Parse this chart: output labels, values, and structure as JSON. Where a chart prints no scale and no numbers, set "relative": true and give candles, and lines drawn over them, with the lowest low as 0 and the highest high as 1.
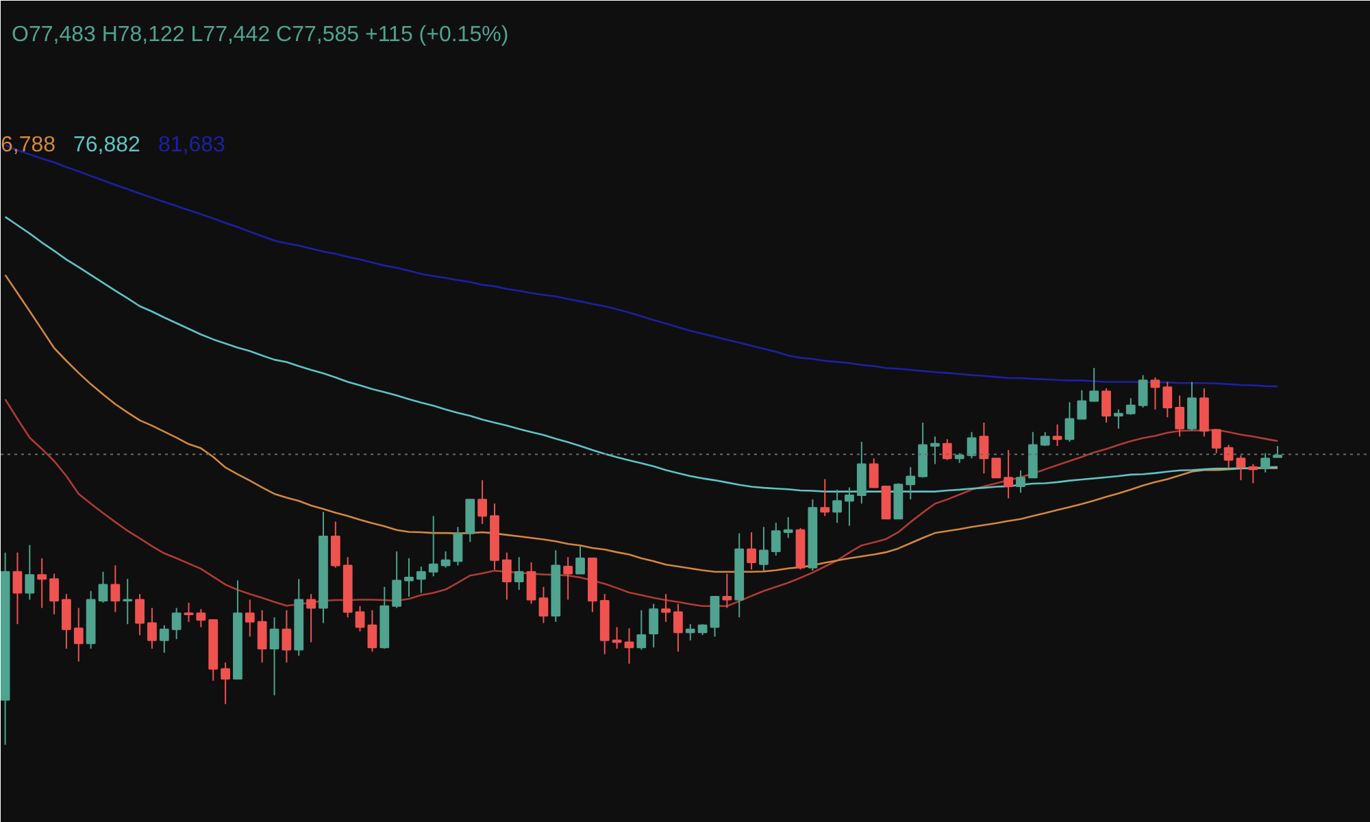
{
  "chart_data": {
    "type": "candlestick",
    "relative": true,
    "categories": [
      null,
      null,
      null,
      null,
      null,
      null,
      null,
      null,
      null,
      null,
      null,
      null,
      null,
      null,
      null,
      null,
      null,
      null,
      null,
      null,
      null,
      null,
      null,
      null,
      null,
      null,
      null,
      null,
      null,
      null,
      null,
      null,
      null,
      null,
      null,
      null,
      null,
      null,
      null,
      null,
      null,
      null,
      null,
      null,
      null,
      null,
      null,
      null,
      null,
      null,
      null,
      null,
      null,
      null,
      null,
      null,
      null,
      null,
      null,
      null,
      null,
      null,
      null,
      null,
      null,
      null,
      null,
      null,
      null,
      null,
      null,
      null,
      null,
      null,
      null,
      null,
      null,
      null,
      null,
      null,
      null,
      null,
      null,
      null,
      null,
      null,
      null,
      null,
      null,
      null,
      null,
      null,
      null,
      null,
      null,
      null,
      null,
      null,
      null,
      null,
      null,
      null,
      null,
      null,
      null
    ],
    "ohlc": [
      [
        0.119,
        0.51,
        0,
        0.459
      ],
      [
        0.459,
        0.51,
        0.32,
        0.403
      ],
      [
        0.403,
        0.53,
        0.385,
        0.451
      ],
      [
        0.451,
        0.495,
        0.363,
        0.44
      ],
      [
        0.44,
        0.454,
        0.346,
        0.382
      ],
      [
        0.385,
        0.4,
        0.255,
        0.306
      ],
      [
        0.309,
        0.363,
        0.221,
        0.269
      ],
      [
        0.269,
        0.408,
        0.255,
        0.385
      ],
      [
        0.382,
        0.459,
        0.377,
        0.425
      ],
      [
        0.425,
        0.476,
        0.352,
        0.382
      ],
      [
        0.382,
        0.44,
        0.32,
        0.385
      ],
      [
        0.385,
        0.4,
        0.291,
        0.323
      ],
      [
        0.323,
        0.363,
        0.255,
        0.277
      ],
      [
        0.277,
        0.317,
        0.244,
        0.306
      ],
      [
        0.306,
        0.363,
        0.28,
        0.349
      ],
      [
        0.349,
        0.377,
        0.326,
        0.346
      ],
      [
        0.349,
        0.36,
        0.312,
        0.331
      ],
      [
        0.331,
        0.331,
        0.17,
        0.201
      ],
      [
        0.201,
        0.218,
        0.108,
        0.175
      ],
      [
        0.175,
        0.436,
        0.175,
        0.349
      ],
      [
        0.349,
        0.385,
        0.287,
        0.326
      ],
      [
        0.326,
        0.357,
        0.218,
        0.255
      ],
      [
        0.255,
        0.338,
        0.131,
        0.306
      ],
      [
        0.306,
        0.357,
        0.218,
        0.252
      ],
      [
        0.252,
        0.44,
        0.236,
        0.385
      ],
      [
        0.385,
        0.4,
        0.272,
        0.363
      ],
      [
        0.363,
        0.618,
        0.323,
        0.553
      ],
      [
        0.553,
        0.592,
        0.47,
        0.476
      ],
      [
        0.476,
        0.498,
        0.338,
        0.352
      ],
      [
        0.352,
        0.368,
        0.301,
        0.312
      ],
      [
        0.317,
        0.357,
        0.247,
        0.258
      ],
      [
        0.258,
        0.419,
        0.255,
        0.368
      ],
      [
        0.368,
        0.513,
        0.363,
        0.436
      ],
      [
        0.436,
        0.495,
        0.393,
        0.444
      ],
      [
        0.44,
        0.473,
        0.403,
        0.459
      ],
      [
        0.459,
        0.607,
        0.447,
        0.479
      ],
      [
        0.476,
        0.513,
        0.47,
        0.49
      ],
      [
        0.487,
        0.578,
        0.476,
        0.561
      ],
      [
        0.561,
        0.651,
        0.538,
        0.651
      ],
      [
        0.651,
        0.702,
        0.586,
        0.607
      ],
      [
        0.607,
        0.64,
        0.465,
        0.49
      ],
      [
        0.49,
        0.51,
        0.385,
        0.433
      ],
      [
        0.433,
        0.498,
        0.411,
        0.459
      ],
      [
        0.459,
        0.484,
        0.374,
        0.385
      ],
      [
        0.389,
        0.419,
        0.323,
        0.342
      ],
      [
        0.342,
        0.516,
        0.326,
        0.476
      ],
      [
        0.473,
        0.498,
        0.385,
        0.454
      ],
      [
        0.454,
        0.527,
        0.454,
        0.495
      ],
      [
        0.495,
        0.495,
        0.352,
        0.382
      ],
      [
        0.382,
        0.4,
        0.24,
        0.277
      ],
      [
        0.277,
        0.312,
        0.255,
        0.272
      ],
      [
        0.272,
        0.309,
        0.215,
        0.258
      ],
      [
        0.258,
        0.357,
        0.252,
        0.291
      ],
      [
        0.295,
        0.374,
        0.258,
        0.36
      ],
      [
        0.36,
        0.4,
        0.326,
        0.352
      ],
      [
        0.352,
        0.374,
        0.247,
        0.298
      ],
      [
        0.298,
        0.32,
        0.277,
        0.306
      ],
      [
        0.298,
        0.32,
        0.291,
        0.317
      ],
      [
        0.312,
        0.393,
        0.287,
        0.393
      ],
      [
        0.393,
        0.454,
        0.363,
        0.385
      ],
      [
        0.385,
        0.561,
        0.338,
        0.519
      ],
      [
        0.519,
        0.564,
        0.465,
        0.484
      ],
      [
        0.479,
        0.578,
        0.462,
        0.516
      ],
      [
        0.513,
        0.589,
        0.502,
        0.567
      ],
      [
        0.564,
        0.604,
        0.549,
        0.57
      ],
      [
        0.57,
        0.575,
        0.465,
        0.47
      ],
      [
        0.47,
        0.651,
        0.462,
        0.629
      ],
      [
        0.629,
        0.705,
        0.607,
        0.618
      ],
      [
        0.618,
        0.677,
        0.589,
        0.647
      ],
      [
        0.647,
        0.683,
        0.581,
        0.662
      ],
      [
        0.662,
        0.804,
        0.64,
        0.745
      ],
      [
        0.745,
        0.76,
        0.683,
        0.683
      ],
      [
        0.686,
        0.686,
        0.6,
        0.6
      ],
      [
        0.6,
        0.694,
        0.6,
        0.691
      ],
      [
        0.691,
        0.737,
        0.651,
        0.712
      ],
      [
        0.712,
        0.855,
        0.709,
        0.796
      ],
      [
        0.793,
        0.818,
        0.745,
        0.799
      ],
      [
        0.799,
        0.811,
        0.756,
        0.76
      ],
      [
        0.76,
        0.774,
        0.748,
        0.768
      ],
      [
        0.768,
        0.83,
        0.76,
        0.814
      ],
      [
        0.818,
        0.855,
        0.72,
        0.76
      ],
      [
        0.76,
        0.76,
        0.709,
        0.709
      ],
      [
        0.709,
        0.782,
        0.654,
        0.686
      ],
      [
        0.686,
        0.728,
        0.669,
        0.709
      ],
      [
        0.709,
        0.83,
        0.709,
        0.796
      ],
      [
        0.796,
        0.83,
        0.793,
        0.818
      ],
      [
        0.818,
        0.85,
        0.793,
        0.811
      ],
      [
        0.811,
        0.909,
        0.804,
        0.865
      ],
      [
        0.865,
        0.941,
        0.865,
        0.912
      ],
      [
        0.912,
        1,
        0.912,
        0.938
      ],
      [
        0.938,
        0.946,
        0.855,
        0.873
      ],
      [
        0.873,
        0.89,
        0.839,
        0.879
      ],
      [
        0.879,
        0.92,
        0.876,
        0.901
      ],
      [
        0.901,
        0.981,
        0.895,
        0.967
      ],
      [
        0.967,
        0.975,
        0.89,
        0.949
      ],
      [
        0.949,
        0.963,
        0.869,
        0.895
      ],
      [
        0.895,
        0.927,
        0.818,
        0.839
      ],
      [
        0.839,
        0.963,
        0.833,
        0.92
      ],
      [
        0.92,
        0.946,
        0.818,
        0.833
      ],
      [
        0.836,
        0.836,
        0.774,
        0.788
      ],
      [
        0.788,
        0.796,
        0.734,
        0.756
      ],
      [
        0.76,
        0.768,
        0.702,
        0.737
      ],
      [
        0.737,
        0.745,
        0.694,
        0.731
      ],
      [
        0.734,
        0.774,
        0.723,
        0.76
      ],
      [
        0.763,
        0.793,
        0.763,
        0.768
      ]
    ],
    "colors": [
      "#4fa38f",
      "#ef5350",
      "#4fa38f",
      "#ef5350",
      "#ef5350",
      "#ef5350",
      "#ef5350",
      "#4fa38f",
      "#4fa38f",
      "#ef5350",
      "#4fa38f",
      "#ef5350",
      "#ef5350",
      "#4fa38f",
      "#4fa38f",
      "#ef5350",
      "#ef5350",
      "#ef5350",
      "#ef5350",
      "#4fa38f",
      "#ef5350",
      "#ef5350",
      "#4fa38f",
      "#ef5350",
      "#4fa38f",
      "#ef5350",
      "#4fa38f",
      "#ef5350",
      "#ef5350",
      "#ef5350",
      "#ef5350",
      "#4fa38f",
      "#4fa38f",
      "#4fa38f",
      "#4fa38f",
      "#4fa38f",
      "#4fa38f",
      "#4fa38f",
      "#4fa38f",
      "#ef5350",
      "#ef5350",
      "#ef5350",
      "#4fa38f",
      "#ef5350",
      "#ef5350",
      "#4fa38f",
      "#ef5350",
      "#4fa38f",
      "#ef5350",
      "#ef5350",
      "#ef5350",
      "#ef5350",
      "#4fa38f",
      "#4fa38f",
      "#ef5350",
      "#ef5350",
      "#4fa38f",
      "#4fa38f",
      "#4fa38f",
      "#ef5350",
      "#4fa38f",
      "#ef5350",
      "#4fa38f",
      "#4fa38f",
      "#4fa38f",
      "#ef5350",
      "#4fa38f",
      "#ef5350",
      "#4fa38f",
      "#4fa38f",
      "#4fa38f",
      "#ef5350",
      "#ef5350",
      "#4fa38f",
      "#4fa38f",
      "#4fa38f",
      "#4fa38f",
      "#ef5350",
      "#4fa38f",
      "#4fa38f",
      "#ef5350",
      "#ef5350",
      "#ef5350",
      "#4fa38f",
      "#4fa38f",
      "#4fa38f",
      "#ef5350",
      "#4fa38f",
      "#4fa38f",
      "#4fa38f",
      "#ef5350",
      "#4fa38f",
      "#4fa38f",
      "#4fa38f",
      "#ef5350",
      "#ef5350",
      "#ef5350",
      "#4fa38f",
      "#ef5350",
      "#ef5350",
      "#ef5350",
      "#ef5350",
      "#ef5350",
      "#4fa38f",
      "#4fa38f"
    ],
    "series": [
      {
        "type": "line",
        "color": "#b23a36",
        "values": [
          0.917,
          0.865,
          0.815,
          0.785,
          0.753,
          0.713,
          0.666,
          0.64,
          0.615,
          0.591,
          0.568,
          0.548,
          0.527,
          0.508,
          0.495,
          0.481,
          0.467,
          0.446,
          0.425,
          0.411,
          0.4,
          0.39,
          0.379,
          0.369,
          0.373,
          0.377,
          0.382,
          0.384,
          0.384,
          0.385,
          0.385,
          0.384,
          0.382,
          0.387,
          0.397,
          0.403,
          0.412,
          0.43,
          0.449,
          0.455,
          0.462,
          0.459,
          0.457,
          0.454,
          0.452,
          0.451,
          0.449,
          0.444,
          0.436,
          0.427,
          0.416,
          0.404,
          0.397,
          0.39,
          0.384,
          0.379,
          0.373,
          0.368,
          0.368,
          0.368,
          0.381,
          0.395,
          0.408,
          0.419,
          0.43,
          0.443,
          0.457,
          0.473,
          0.489,
          0.51,
          0.529,
          0.537,
          0.546,
          0.564,
          0.591,
          0.616,
          0.64,
          0.651,
          0.664,
          0.677,
          0.686,
          0.694,
          0.702,
          0.71,
          0.72,
          0.731,
          0.742,
          0.753,
          0.764,
          0.776,
          0.785,
          0.796,
          0.806,
          0.814,
          0.82,
          0.828,
          0.833,
          0.834,
          0.834,
          0.836,
          0.83,
          0.823,
          0.818,
          0.812,
          0.806
        ]
      },
      {
        "type": "line",
        "color": "#d4883c",
        "values": [
          1.247,
          1.199,
          1.151,
          1.102,
          1.053,
          1.019,
          0.987,
          0.957,
          0.93,
          0.904,
          0.882,
          0.861,
          0.847,
          0.831,
          0.815,
          0.798,
          0.787,
          0.764,
          0.736,
          0.718,
          0.701,
          0.683,
          0.666,
          0.656,
          0.647,
          0.635,
          0.626,
          0.616,
          0.607,
          0.597,
          0.588,
          0.58,
          0.57,
          0.565,
          0.564,
          0.562,
          0.562,
          0.561,
          0.562,
          0.564,
          0.561,
          0.557,
          0.553,
          0.549,
          0.545,
          0.54,
          0.533,
          0.529,
          0.522,
          0.518,
          0.511,
          0.505,
          0.495,
          0.487,
          0.478,
          0.473,
          0.468,
          0.463,
          0.459,
          0.459,
          0.459,
          0.459,
          0.46,
          0.463,
          0.468,
          0.471,
          0.476,
          0.483,
          0.489,
          0.495,
          0.5,
          0.505,
          0.511,
          0.521,
          0.535,
          0.549,
          0.562,
          0.567,
          0.572,
          0.578,
          0.583,
          0.588,
          0.594,
          0.599,
          0.607,
          0.615,
          0.623,
          0.631,
          0.639,
          0.648,
          0.658,
          0.667,
          0.677,
          0.688,
          0.697,
          0.705,
          0.715,
          0.725,
          0.729,
          0.729,
          0.731,
          0.733,
          0.734,
          0.734,
          0.734
        ]
      },
      {
        "type": "line",
        "color": "#5ec4c6",
        "values": [
          1.401,
          1.379,
          1.357,
          1.333,
          1.311,
          1.288,
          1.268,
          1.247,
          1.226,
          1.205,
          1.185,
          1.164,
          1.15,
          1.134,
          1.119,
          1.104,
          1.089,
          1.076,
          1.065,
          1.054,
          1.045,
          1.033,
          1.022,
          1.016,
          1.005,
          0.995,
          0.986,
          0.975,
          0.963,
          0.954,
          0.944,
          0.936,
          0.927,
          0.917,
          0.908,
          0.9,
          0.89,
          0.881,
          0.873,
          0.863,
          0.855,
          0.847,
          0.838,
          0.83,
          0.822,
          0.812,
          0.803,
          0.793,
          0.782,
          0.772,
          0.763,
          0.755,
          0.747,
          0.739,
          0.729,
          0.721,
          0.713,
          0.707,
          0.702,
          0.696,
          0.69,
          0.685,
          0.682,
          0.68,
          0.678,
          0.675,
          0.674,
          0.672,
          0.672,
          0.672,
          0.672,
          0.672,
          0.672,
          0.672,
          0.672,
          0.672,
          0.672,
          0.675,
          0.677,
          0.68,
          0.682,
          0.685,
          0.686,
          0.69,
          0.693,
          0.694,
          0.697,
          0.701,
          0.704,
          0.707,
          0.71,
          0.713,
          0.717,
          0.718,
          0.721,
          0.725,
          0.728,
          0.729,
          0.731,
          0.733,
          0.733,
          0.734,
          0.734,
          0.736,
          0.737
        ]
      },
      {
        "type": "line",
        "color": "#1f1fa8",
        "values": [
          1.592,
          1.578,
          1.567,
          1.556,
          1.546,
          1.533,
          1.522,
          1.51,
          1.498,
          1.486,
          1.475,
          1.463,
          1.452,
          1.441,
          1.43,
          1.419,
          1.408,
          1.397,
          1.385,
          1.374,
          1.362,
          1.35,
          1.338,
          1.331,
          1.325,
          1.317,
          1.309,
          1.303,
          1.295,
          1.288,
          1.28,
          1.272,
          1.266,
          1.258,
          1.25,
          1.244,
          1.239,
          1.233,
          1.228,
          1.221,
          1.217,
          1.21,
          1.205,
          1.199,
          1.194,
          1.19,
          1.183,
          1.177,
          1.17,
          1.164,
          1.156,
          1.147,
          1.137,
          1.127,
          1.118,
          1.108,
          1.099,
          1.091,
          1.083,
          1.075,
          1.067,
          1.059,
          1.051,
          1.043,
          1.033,
          1.027,
          1.024,
          1.019,
          1.016,
          1.013,
          1.008,
          1.005,
          1.0,
          0.998,
          0.995,
          0.992,
          0.989,
          0.987,
          0.984,
          0.981,
          0.979,
          0.976,
          0.973,
          0.973,
          0.971,
          0.97,
          0.968,
          0.967,
          0.967,
          0.965,
          0.963,
          0.963,
          0.963,
          0.962,
          0.962,
          0.962,
          0.96,
          0.96,
          0.96,
          0.959,
          0.957,
          0.955,
          0.954,
          0.952,
          0.951
        ]
      }
    ],
    "ref_lines": [
      {
        "axis": "y",
        "value": 0.771,
        "color": "#6b6b6b",
        "line_style": "dotted"
      }
    ],
    "annotations": [
      "O77,483 H78,122 L77,442 C77,585 +115 (+0.15%)",
      "6,788",
      "76,882",
      "81,683"
    ]
  }
}
